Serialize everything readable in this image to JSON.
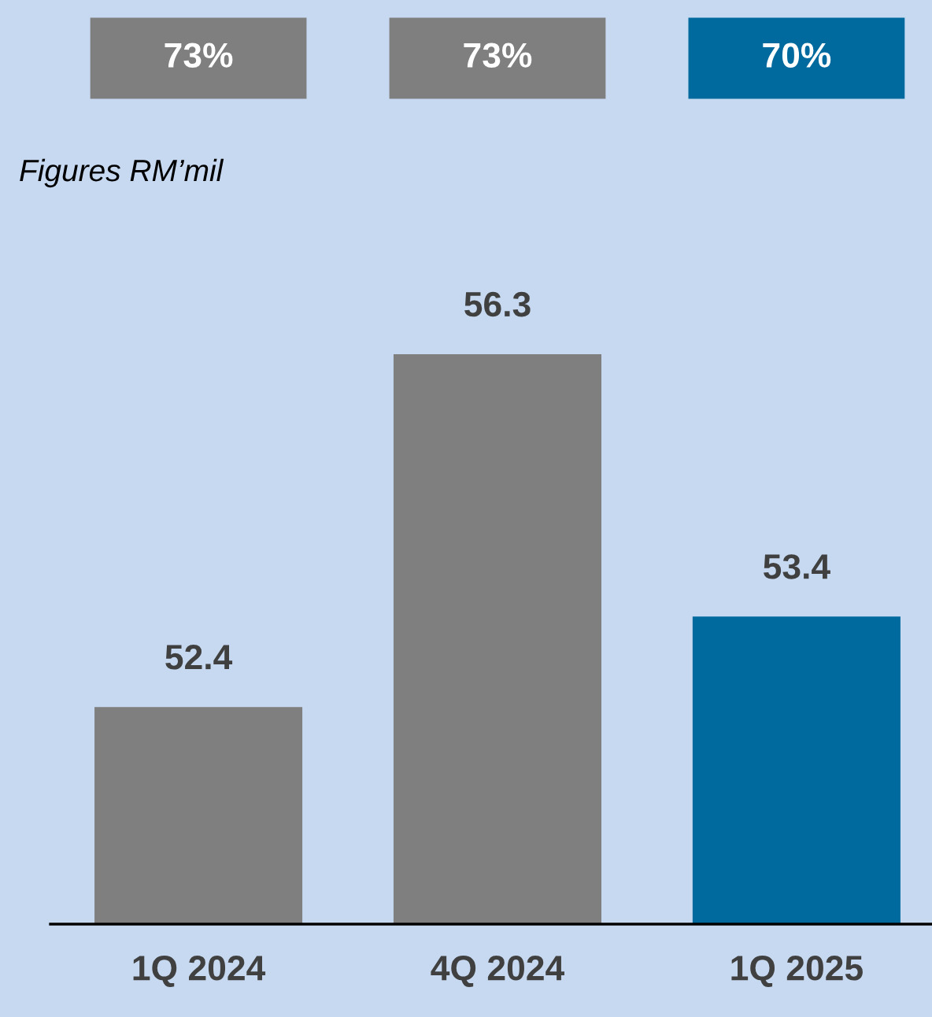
{
  "chart_data": {
    "type": "bar",
    "subtitle": "Figures RM’mil",
    "categories": [
      "1Q 2024",
      "4Q 2024",
      "1Q 2025"
    ],
    "values": [
      52.4,
      56.3,
      53.4
    ],
    "colors": [
      "#7f7f7f",
      "#7f7f7f",
      "#006a9e"
    ],
    "ylim": [
      50,
      56.3
    ],
    "data_labels": true,
    "annotations": [
      "73%",
      "73%",
      "70%"
    ],
    "tick_labels": "x",
    "grid": false,
    "legend": false
  }
}
